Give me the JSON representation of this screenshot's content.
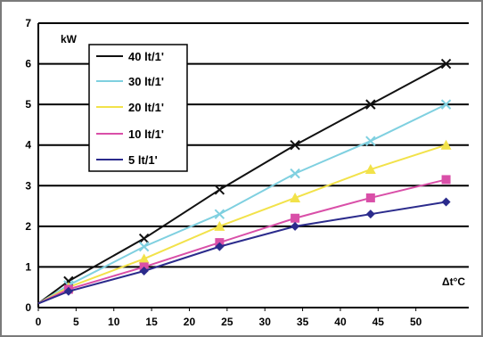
{
  "chart_data": {
    "type": "line",
    "title": "",
    "ylabel": "kW",
    "xlabel": "Δt°C",
    "xlim": [
      0,
      57
    ],
    "ylim": [
      0,
      7
    ],
    "xticks": [
      0,
      5,
      10,
      15,
      20,
      25,
      30,
      35,
      40,
      45,
      50
    ],
    "yticks": [
      0,
      1,
      2,
      3,
      4,
      5,
      6,
      7
    ],
    "grid": "horizontal",
    "legend_position": "top-left",
    "x": [
      0,
      4,
      14,
      24,
      34,
      44,
      54
    ],
    "series": [
      {
        "name": "40 lt/1'",
        "color": "#111111",
        "marker": "x",
        "values": [
          0.1,
          0.65,
          1.7,
          2.9,
          4.0,
          5.0,
          6.0
        ]
      },
      {
        "name": "30 lt/1'",
        "color": "#7fd0e0",
        "marker": "x",
        "values": [
          0.1,
          0.55,
          1.5,
          2.3,
          3.3,
          4.1,
          5.0
        ]
      },
      {
        "name": "20 lt/1'",
        "color": "#f2e24a",
        "marker": "triangle",
        "values": [
          0.1,
          0.5,
          1.2,
          2.0,
          2.7,
          3.4,
          4.0
        ]
      },
      {
        "name": "10 lt/1'",
        "color": "#d94fa8",
        "marker": "square",
        "values": [
          0.1,
          0.45,
          1.0,
          1.6,
          2.2,
          2.7,
          3.15
        ]
      },
      {
        "name": "5 lt/1'",
        "color": "#2b2b8c",
        "marker": "diamond",
        "values": [
          0.1,
          0.4,
          0.9,
          1.5,
          2.0,
          2.3,
          2.6
        ]
      }
    ]
  }
}
